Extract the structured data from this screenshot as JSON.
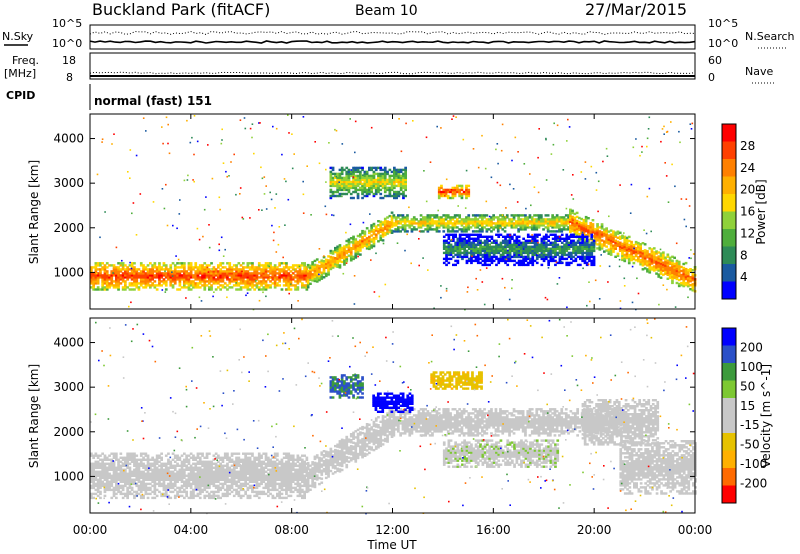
{
  "header": {
    "site": "Buckland Park (fitACF)",
    "beam": "Beam 10",
    "date": "27/Mar/2015"
  },
  "noise_panel": {
    "left_label": "N.Sky",
    "right_label": "N.Search",
    "left_ticks": [
      "10^5",
      "10^0"
    ],
    "right_ticks": [
      "10^5",
      "10^0"
    ]
  },
  "freq_panel": {
    "left_label_1": "Freq.",
    "left_label_2": "[MHz]",
    "right_label": "Nave",
    "left_ticks": [
      "18",
      "8"
    ],
    "right_ticks": [
      "60",
      "0"
    ]
  },
  "cpid": {
    "label": "CPID",
    "value": "normal (fast) 151"
  },
  "colors": {
    "power_scale": [
      "#0000ff",
      "#1a5aa0",
      "#2e8b57",
      "#4fae3c",
      "#8fd13a",
      "#ffd700",
      "#ffb000",
      "#ff8000",
      "#ff4000",
      "#ff0000"
    ],
    "velocity_scale": [
      "#ff0000",
      "#ff6a00",
      "#ffb000",
      "#e6c200",
      "#c8c8c8",
      "#c8c8c8",
      "#7dc832",
      "#3c9a3c",
      "#2b50c8",
      "#0000ff"
    ],
    "ground_scatter": "#c8c8c8"
  },
  "chart_data": [
    {
      "type": "heatmap",
      "name_in_figure": "power",
      "x": [
        "00:00",
        "04:00",
        "08:00",
        "12:00",
        "16:00",
        "20:00",
        "00:00"
      ],
      "xlabel": "",
      "ylabel": "Slant Range [km]",
      "y_ticks": [
        1000,
        2000,
        3000,
        4000
      ],
      "ylim": [
        180,
        4550
      ],
      "xlim_hours": [
        0,
        24
      ],
      "colorbar": {
        "label": "Power [dB]",
        "ticks": [
          4,
          8,
          12,
          16,
          20,
          24,
          28
        ],
        "range": [
          0,
          32
        ]
      },
      "bands": [
        {
          "start_h": 0.0,
          "end_h": 8.6,
          "center_km": 900,
          "half_width_km": 300,
          "level_db": 28
        },
        {
          "start_h": 8.6,
          "end_h": 12.0,
          "center_km_start": 900,
          "center_km_end": 2100,
          "half_width_km": 250,
          "level_db": 24
        },
        {
          "start_h": 12.0,
          "end_h": 19.0,
          "center_km": 2100,
          "half_width_km": 200,
          "level_db": 20
        },
        {
          "start_h": 19.0,
          "end_h": 24.0,
          "center_km_start": 2100,
          "center_km_end": 800,
          "half_width_km": 300,
          "level_db": 26
        },
        {
          "start_h": 9.5,
          "end_h": 12.5,
          "center_km": 3000,
          "half_width_km": 350,
          "level_db": 18
        },
        {
          "start_h": 13.8,
          "end_h": 15.0,
          "center_km": 2800,
          "half_width_km": 150,
          "level_db": 28
        },
        {
          "start_h": 14.0,
          "end_h": 20.0,
          "center_km": 1500,
          "half_width_km": 350,
          "level_db": 10
        }
      ]
    },
    {
      "type": "heatmap",
      "name_in_figure": "velocity",
      "x": [
        "00:00",
        "04:00",
        "08:00",
        "12:00",
        "16:00",
        "20:00",
        "00:00"
      ],
      "xlabel": "Time UT",
      "ylabel": "Slant Range [km]",
      "y_ticks": [
        1000,
        2000,
        3000,
        4000
      ],
      "ylim": [
        180,
        4550
      ],
      "xlim_hours": [
        0,
        24
      ],
      "colorbar": {
        "label": "Velocity [m s^-1]",
        "ticks": [
          200,
          100,
          50,
          15,
          -15,
          -50,
          -100,
          -200
        ],
        "range": [
          -250,
          250
        ]
      },
      "bands": [
        {
          "start_h": 0.0,
          "end_h": 8.6,
          "center_km": 1000,
          "half_width_km": 500,
          "level": 0
        },
        {
          "start_h": 8.6,
          "end_h": 12.0,
          "center_km_start": 1000,
          "center_km_end": 2200,
          "half_width_km": 350,
          "level": 0
        },
        {
          "start_h": 12.0,
          "end_h": 21.0,
          "center_km": 2200,
          "half_width_km": 300,
          "level": 0
        },
        {
          "start_h": 21.0,
          "end_h": 24.0,
          "center_km": 1200,
          "half_width_km": 600,
          "level": 0
        },
        {
          "start_h": 11.2,
          "end_h": 12.8,
          "center_km": 2650,
          "half_width_km": 220,
          "level": 220
        },
        {
          "start_h": 9.5,
          "end_h": 10.8,
          "center_km": 3000,
          "half_width_km": 250,
          "level": 150
        },
        {
          "start_h": 13.5,
          "end_h": 15.5,
          "center_km": 3150,
          "half_width_km": 200,
          "level": -90
        },
        {
          "start_h": 14.0,
          "end_h": 18.5,
          "center_km": 1500,
          "half_width_km": 300,
          "level": 40
        },
        {
          "start_h": 19.5,
          "end_h": 22.5,
          "center_km": 2200,
          "half_width_km": 500,
          "level": 35
        }
      ]
    }
  ]
}
